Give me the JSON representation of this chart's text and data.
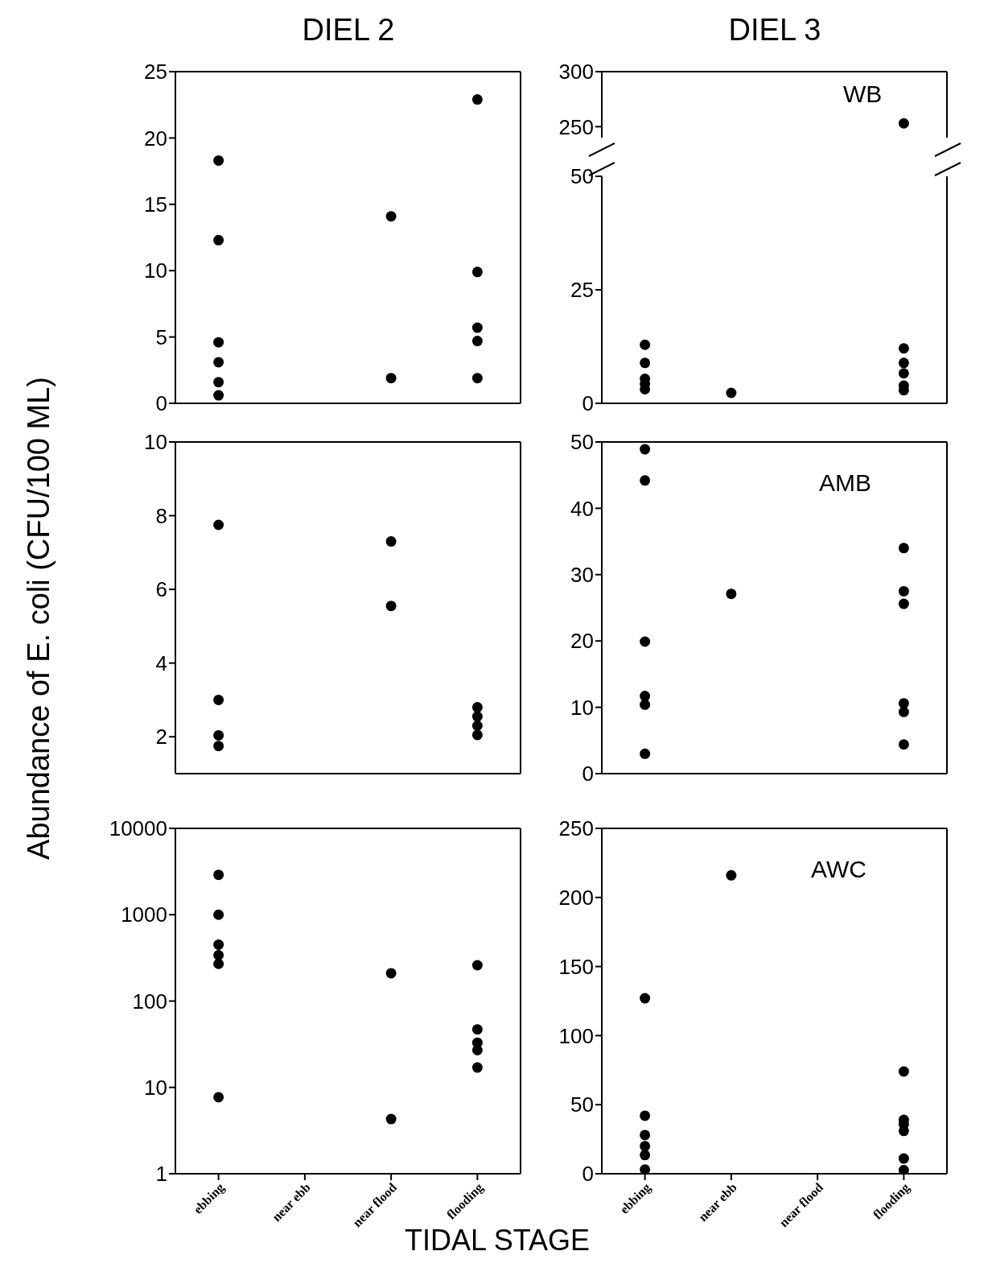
{
  "chart_data": [
    {
      "type": "scatter",
      "title": "DIEL 2",
      "categories": [
        "ebbing",
        "near ebb",
        "near flood",
        "flooding"
      ],
      "tick_labels": "y",
      "ylim": [
        0,
        25
      ],
      "yticks": [
        0,
        5,
        10,
        15,
        20,
        25
      ],
      "marker": "circle",
      "series": [
        {
          "color": "#000000",
          "x": [
            "ebbing",
            "ebbing",
            "ebbing",
            "ebbing",
            "ebbing",
            "ebbing",
            "near flood",
            "near flood",
            "flooding",
            "flooding",
            "flooding",
            "flooding",
            "flooding"
          ],
          "values": [
            18.3,
            12.3,
            4.6,
            3.1,
            1.6,
            0.6,
            14.1,
            1.9,
            22.9,
            9.9,
            5.7,
            4.7,
            1.9
          ]
        }
      ]
    },
    {
      "type": "scatter",
      "title": "DIEL 3",
      "annotations": [
        "WB"
      ],
      "categories": [
        "ebbing",
        "near ebb",
        "near flood",
        "flooding"
      ],
      "tick_labels": "y",
      "ylim": [
        240,
        300
      ],
      "yticks": [
        250,
        300
      ],
      "marker": "circle",
      "series": [
        {
          "color": "#000000",
          "x": [
            "flooding"
          ],
          "values": [
            253
          ]
        }
      ]
    },
    {
      "type": "scatter",
      "categories": [
        "ebbing",
        "near ebb",
        "near flood",
        "flooding"
      ],
      "tick_labels": "y",
      "ylim": [
        0,
        50
      ],
      "yticks": [
        0,
        25,
        50
      ],
      "marker": "circle",
      "series": [
        {
          "color": "#000000",
          "x": [
            "ebbing",
            "ebbing",
            "ebbing",
            "ebbing",
            "ebbing",
            "near ebb",
            "flooding",
            "flooding",
            "flooding",
            "flooding",
            "flooding"
          ],
          "values": [
            12.9,
            8.9,
            5.4,
            4.3,
            3.1,
            2.3,
            12.1,
            8.9,
            6.6,
            3.9,
            2.9
          ]
        }
      ]
    },
    {
      "type": "scatter",
      "ylabel": "Abundance of E. coli (CFU/100 ML)",
      "categories": [
        "ebbing",
        "near ebb",
        "near flood",
        "flooding"
      ],
      "tick_labels": "y",
      "ylim": [
        1,
        10
      ],
      "yticks": [
        2,
        4,
        6,
        8,
        10
      ],
      "marker": "circle",
      "series": [
        {
          "color": "#000000",
          "x": [
            "ebbing",
            "ebbing",
            "ebbing",
            "ebbing",
            "near flood",
            "near flood",
            "flooding",
            "flooding",
            "flooding",
            "flooding"
          ],
          "values": [
            7.75,
            3.0,
            2.04,
            1.75,
            7.3,
            5.55,
            2.8,
            2.55,
            2.3,
            2.05
          ]
        }
      ]
    },
    {
      "type": "scatter",
      "annotations": [
        "AMB"
      ],
      "categories": [
        "ebbing",
        "near ebb",
        "near flood",
        "flooding"
      ],
      "tick_labels": "y",
      "ylim": [
        0,
        50
      ],
      "yticks": [
        0,
        10,
        20,
        30,
        40,
        50
      ],
      "marker": "circle",
      "series": [
        {
          "color": "#000000",
          "x": [
            "ebbing",
            "ebbing",
            "ebbing",
            "ebbing",
            "ebbing",
            "ebbing",
            "near ebb",
            "flooding",
            "flooding",
            "flooding",
            "flooding",
            "flooding",
            "flooding"
          ],
          "values": [
            48.9,
            44.2,
            19.9,
            11.7,
            10.4,
            3.0,
            27.1,
            34.0,
            27.5,
            25.6,
            10.6,
            9.3,
            4.4
          ]
        }
      ]
    },
    {
      "type": "scatter",
      "categories": [
        "ebbing",
        "near ebb",
        "near flood",
        "flooding"
      ],
      "log": true,
      "ylim": [
        1,
        10000
      ],
      "yticks": [
        1,
        10,
        100,
        1000,
        10000
      ],
      "marker": "circle",
      "series": [
        {
          "color": "#000000",
          "x": [
            "ebbing",
            "ebbing",
            "ebbing",
            "ebbing",
            "ebbing",
            "ebbing",
            "near flood",
            "near flood",
            "flooding",
            "flooding",
            "flooding",
            "flooding",
            "flooding"
          ],
          "values": [
            2900,
            1000,
            450,
            340,
            270,
            7.7,
            210,
            4.3,
            260,
            47,
            33,
            27,
            17
          ]
        }
      ]
    },
    {
      "type": "scatter",
      "xlabel": "TIDAL STAGE",
      "annotations": [
        "AWC"
      ],
      "categories": [
        "ebbing",
        "near ebb",
        "near flood",
        "flooding"
      ],
      "ylim": [
        0,
        250
      ],
      "yticks": [
        0,
        50,
        100,
        150,
        200,
        250
      ],
      "marker": "circle",
      "series": [
        {
          "color": "#000000",
          "x": [
            "ebbing",
            "ebbing",
            "ebbing",
            "ebbing",
            "ebbing",
            "ebbing",
            "near ebb",
            "flooding",
            "flooding",
            "flooding",
            "flooding",
            "flooding",
            "flooding"
          ],
          "values": [
            127,
            42,
            28,
            20,
            13.5,
            3,
            216,
            74,
            39,
            36,
            31,
            11,
            2.6
          ]
        }
      ]
    }
  ]
}
